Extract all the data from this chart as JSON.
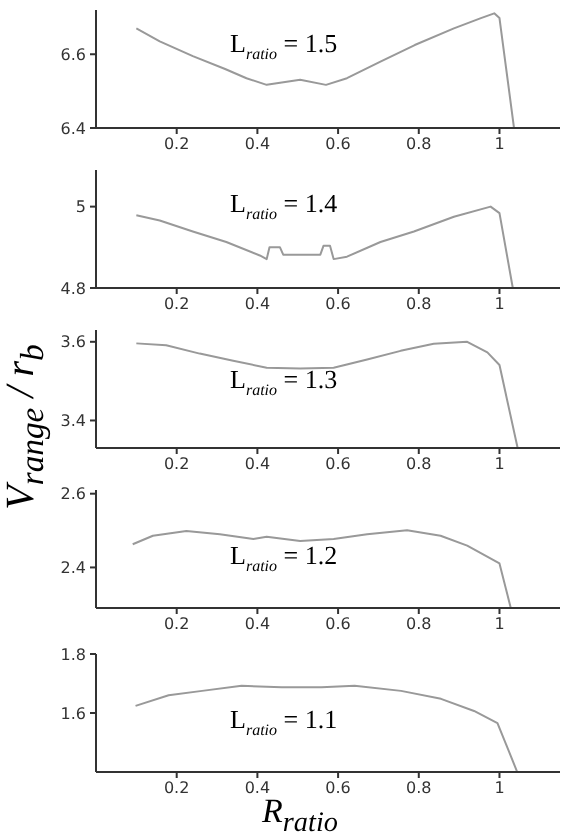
{
  "chart_data": [
    {
      "type": "line",
      "annotations": [
        "L$_{ratio}$ = 1.5"
      ],
      "xlim": [
        0,
        1.15
      ],
      "xticks": [
        0.2,
        0.4,
        0.6,
        0.8,
        1
      ],
      "ylim": [
        6.4,
        6.72
      ],
      "yticks": [
        6.4,
        6.6
      ],
      "grid": false,
      "marker": "none",
      "x": [
        0.1,
        0.158,
        0.24,
        0.32,
        0.373,
        0.423,
        0.506,
        0.57,
        0.622,
        0.705,
        0.79,
        0.887,
        0.954,
        0.987,
        1.0,
        1.036
      ],
      "series": [
        {
          "color": "#999999",
          "values": [
            6.67,
            6.635,
            6.595,
            6.56,
            6.535,
            6.517,
            6.531,
            6.517,
            6.535,
            6.58,
            6.625,
            6.67,
            6.698,
            6.711,
            6.698,
            6.4
          ]
        }
      ]
    },
    {
      "type": "line",
      "annotations": [
        "L$_{ratio}$ = 1.4"
      ],
      "xlim": [
        0,
        1.15
      ],
      "xticks": [
        0.2,
        0.4,
        0.6,
        0.8,
        1
      ],
      "ylim": [
        4.8,
        5.09
      ],
      "yticks": [
        4.8,
        5
      ],
      "grid": false,
      "marker": "none",
      "x": [
        0.1,
        0.158,
        0.24,
        0.323,
        0.406,
        0.423,
        0.43,
        0.456,
        0.464,
        0.556,
        0.564,
        0.58,
        0.589,
        0.622,
        0.705,
        0.788,
        0.887,
        0.978,
        1.0,
        1.033
      ],
      "series": [
        {
          "color": "#999999",
          "values": [
            4.979,
            4.966,
            4.939,
            4.913,
            4.88,
            4.871,
            4.9,
            4.9,
            4.882,
            4.882,
            4.904,
            4.904,
            4.871,
            4.877,
            4.913,
            4.939,
            4.975,
            5.0,
            4.984,
            4.8
          ]
        }
      ]
    },
    {
      "type": "line",
      "ylabel": "V$_{range}$ / r$_{b}$",
      "annotations": [
        "L$_{ratio}$ = 1.3"
      ],
      "xlim": [
        0,
        1.15
      ],
      "xticks": [
        0.2,
        0.4,
        0.6,
        0.8,
        1
      ],
      "ylim": [
        3.33,
        3.63
      ],
      "yticks": [
        3.4,
        3.6
      ],
      "grid": false,
      "marker": "none",
      "x": [
        0.1,
        0.174,
        0.257,
        0.34,
        0.423,
        0.506,
        0.589,
        0.672,
        0.755,
        0.837,
        0.92,
        0.97,
        1.0,
        1.045
      ],
      "series": [
        {
          "color": "#999999",
          "values": [
            3.596,
            3.591,
            3.57,
            3.552,
            3.534,
            3.532,
            3.534,
            3.555,
            3.577,
            3.595,
            3.6,
            3.573,
            3.541,
            3.33
          ]
        }
      ]
    },
    {
      "type": "line",
      "annotations": [
        "L$_{ratio}$ = 1.2"
      ],
      "xlim": [
        0,
        1.15
      ],
      "xticks": [
        0.2,
        0.4,
        0.6,
        0.8,
        1
      ],
      "ylim": [
        2.29,
        2.61
      ],
      "yticks": [
        2.4,
        2.6
      ],
      "grid": false,
      "marker": "none",
      "x": [
        0.091,
        0.141,
        0.224,
        0.307,
        0.39,
        0.423,
        0.506,
        0.589,
        0.672,
        0.771,
        0.854,
        0.92,
        1.0,
        1.028
      ],
      "series": [
        {
          "color": "#999999",
          "values": [
            2.463,
            2.486,
            2.499,
            2.49,
            2.477,
            2.483,
            2.472,
            2.477,
            2.49,
            2.501,
            2.486,
            2.459,
            2.411,
            2.29
          ]
        }
      ]
    },
    {
      "type": "line",
      "xlabel": "R$_{ratio}$",
      "annotations": [
        "L$_{ratio}$ = 1.1"
      ],
      "xlim": [
        0,
        1.15
      ],
      "xticks": [
        0.2,
        0.4,
        0.6,
        0.8,
        1
      ],
      "ylim": [
        1.4,
        1.8
      ],
      "yticks": [
        1.6,
        1.8
      ],
      "grid": false,
      "marker": "none",
      "x": [
        0.098,
        0.18,
        0.263,
        0.361,
        0.46,
        0.559,
        0.641,
        0.756,
        0.855,
        0.937,
        0.995,
        1.044
      ],
      "series": [
        {
          "color": "#999999",
          "values": [
            1.624,
            1.66,
            1.675,
            1.692,
            1.687,
            1.687,
            1.692,
            1.675,
            1.648,
            1.607,
            1.566,
            1.4
          ]
        }
      ]
    }
  ]
}
